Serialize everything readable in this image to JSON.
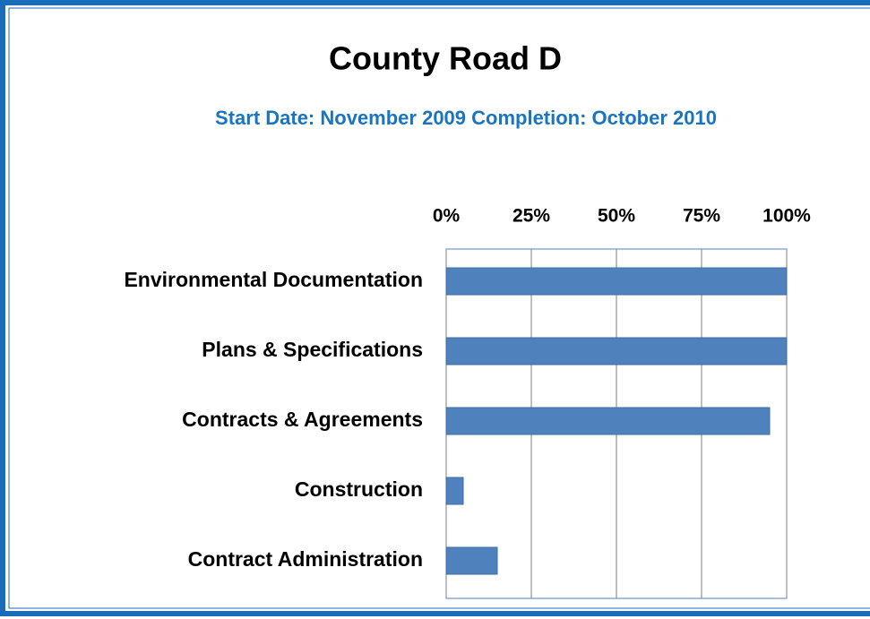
{
  "chart_data": {
    "type": "bar",
    "orientation": "horizontal",
    "title": "County Road D",
    "subtitle": "Start Date: November 2009  Completion: October 2010",
    "categories": [
      "Environmental Documentation",
      "Plans & Specifications",
      "Contracts & Agreements",
      "Construction",
      "Contract Administration"
    ],
    "values": [
      100,
      100,
      95,
      5,
      15
    ],
    "color": "#4f81bd",
    "xlim": [
      0,
      100
    ],
    "xticks": [
      {
        "value": 0,
        "label": "0%"
      },
      {
        "value": 25,
        "label": "25%"
      },
      {
        "value": 50,
        "label": "50%"
      },
      {
        "value": 75,
        "label": "75%"
      },
      {
        "value": 100,
        "label": "100%"
      }
    ],
    "grid": true
  }
}
